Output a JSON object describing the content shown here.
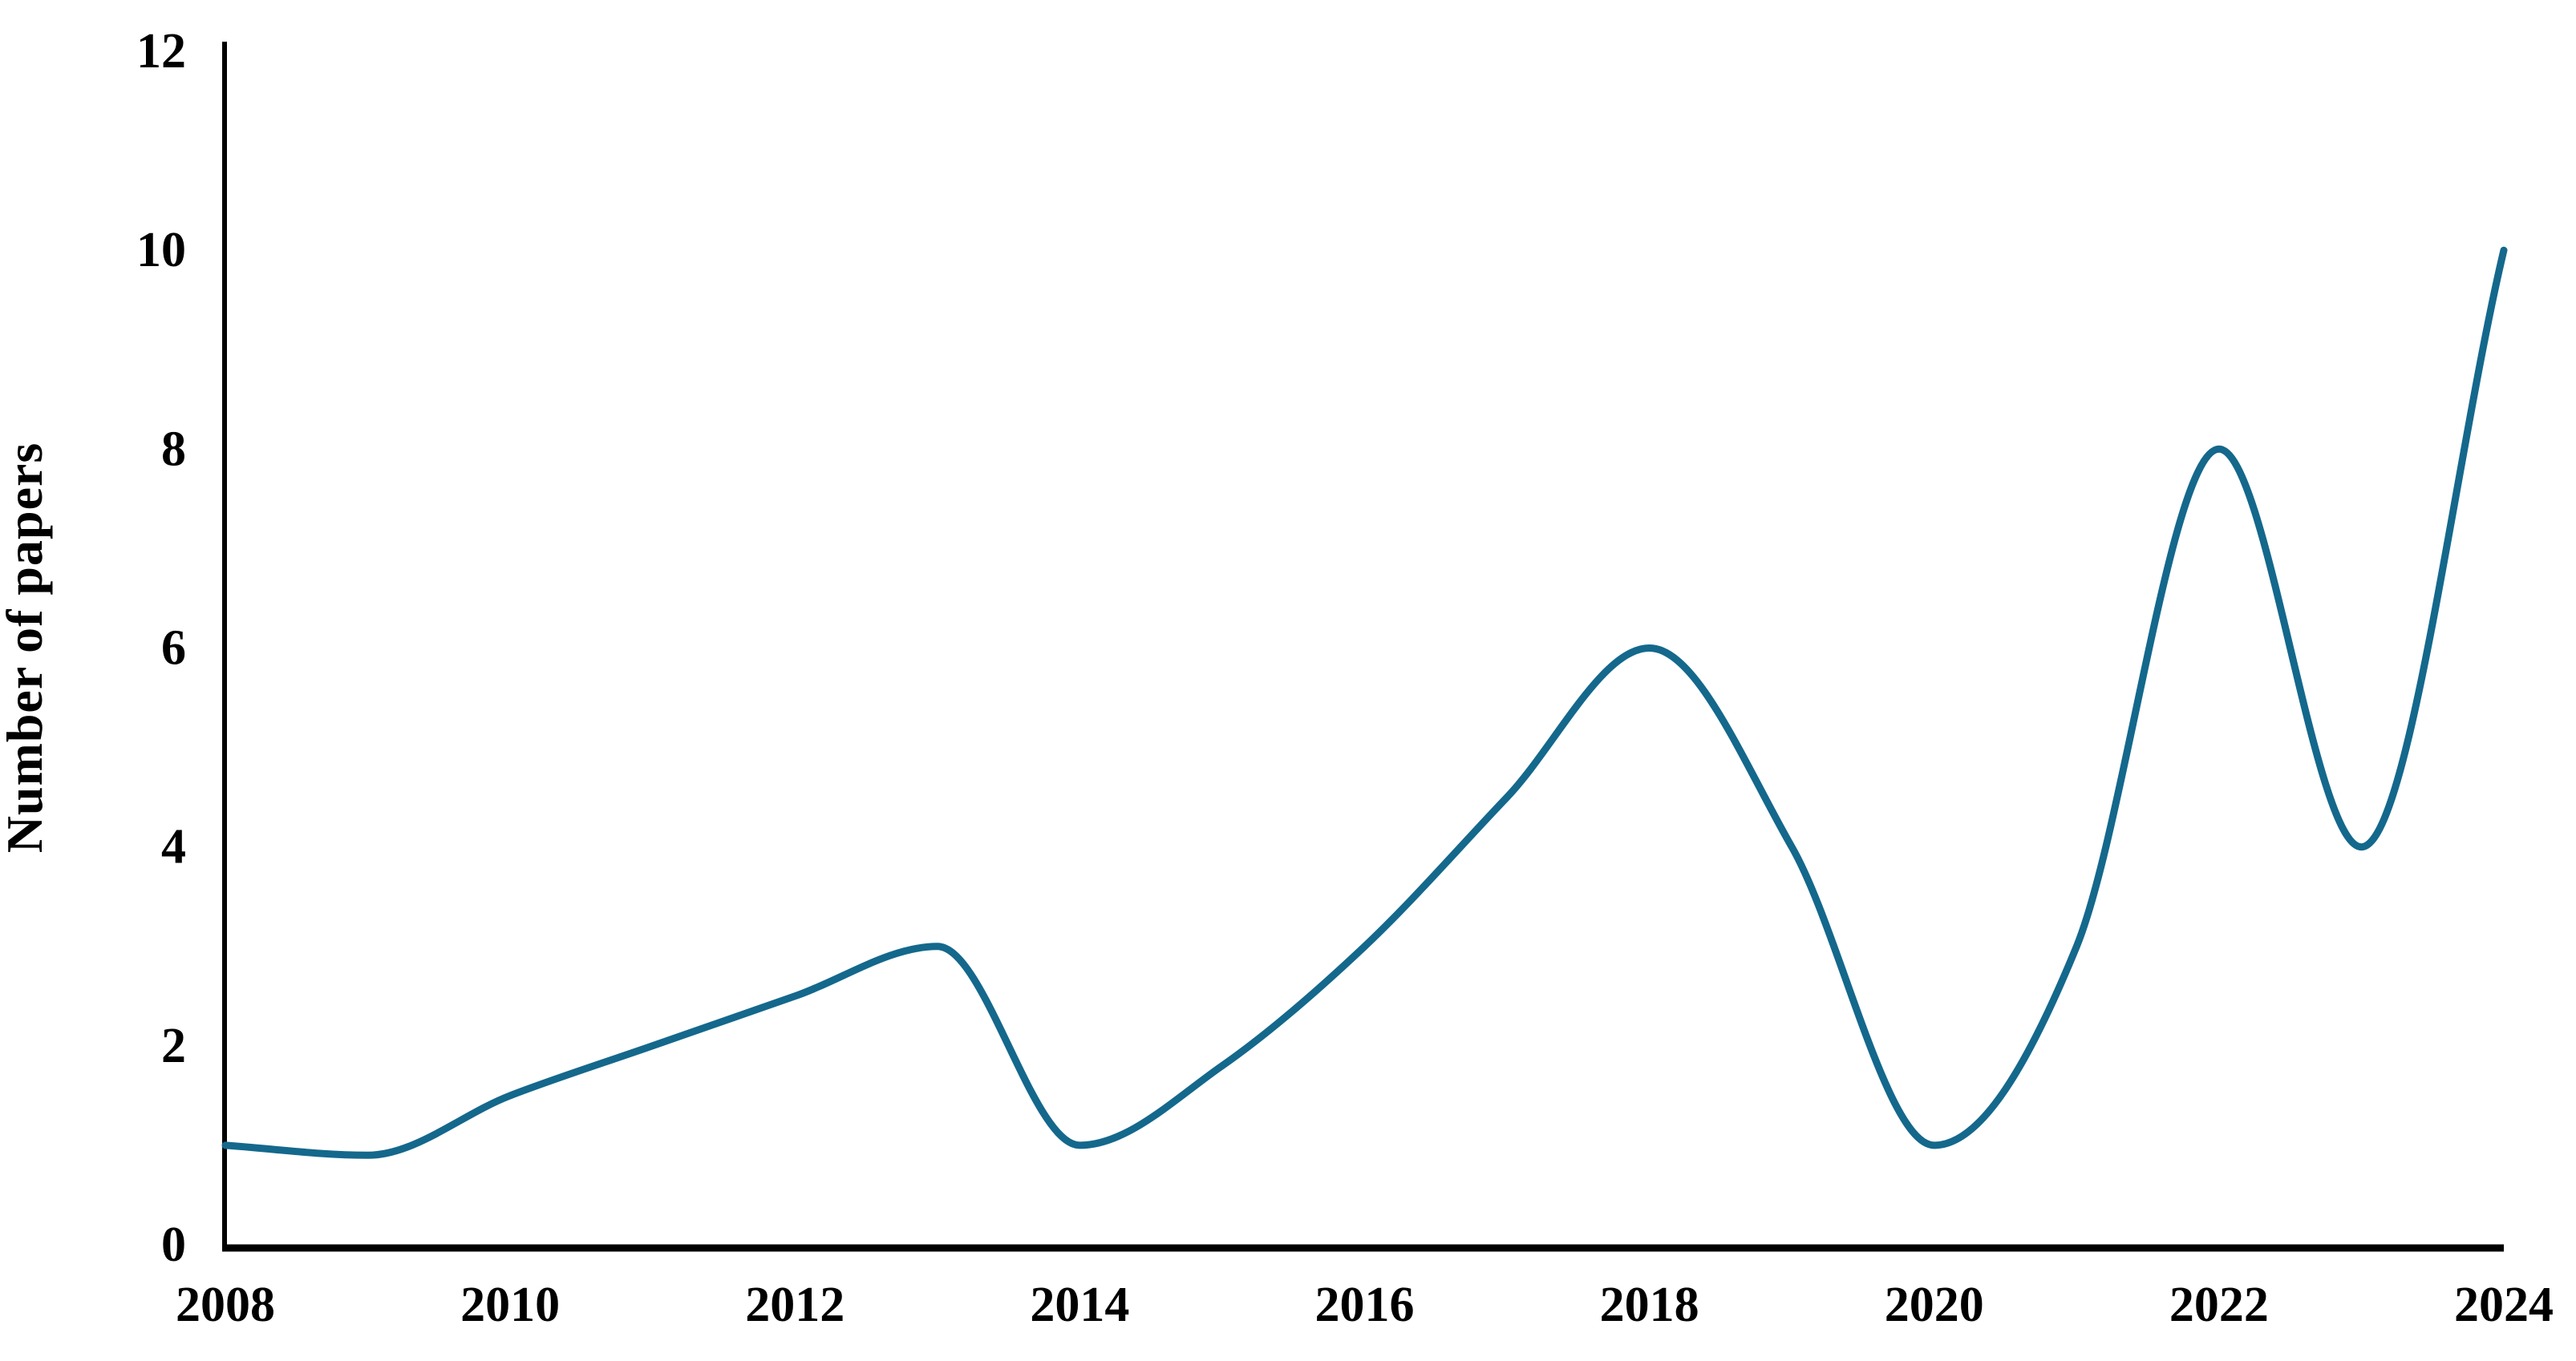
{
  "chart_data": {
    "type": "line",
    "title": "",
    "xlabel": "",
    "ylabel": "Number of papers",
    "x": [
      2008,
      2009,
      2010,
      2011,
      2012,
      2013,
      2014,
      2015,
      2016,
      2017,
      2018,
      2019,
      2020,
      2021,
      2022,
      2023,
      2024
    ],
    "series": [
      {
        "name": "Number of papers",
        "values": [
          1,
          0.9,
          1.5,
          2,
          2.5,
          3,
          1,
          1.8,
          3,
          4.5,
          6,
          4,
          1,
          3,
          8,
          4,
          10
        ]
      }
    ],
    "xticks": [
      2008,
      2010,
      2012,
      2014,
      2016,
      2018,
      2020,
      2022,
      2024
    ],
    "yticks": [
      0,
      2,
      4,
      6,
      8,
      10,
      12
    ],
    "xlim": [
      2008,
      2024
    ],
    "ylim": [
      0,
      12
    ],
    "grid": false,
    "legend": "none",
    "smooth": true,
    "line_color": "#14688C",
    "axis_color": "#000000",
    "background": "#FFFFFF"
  }
}
